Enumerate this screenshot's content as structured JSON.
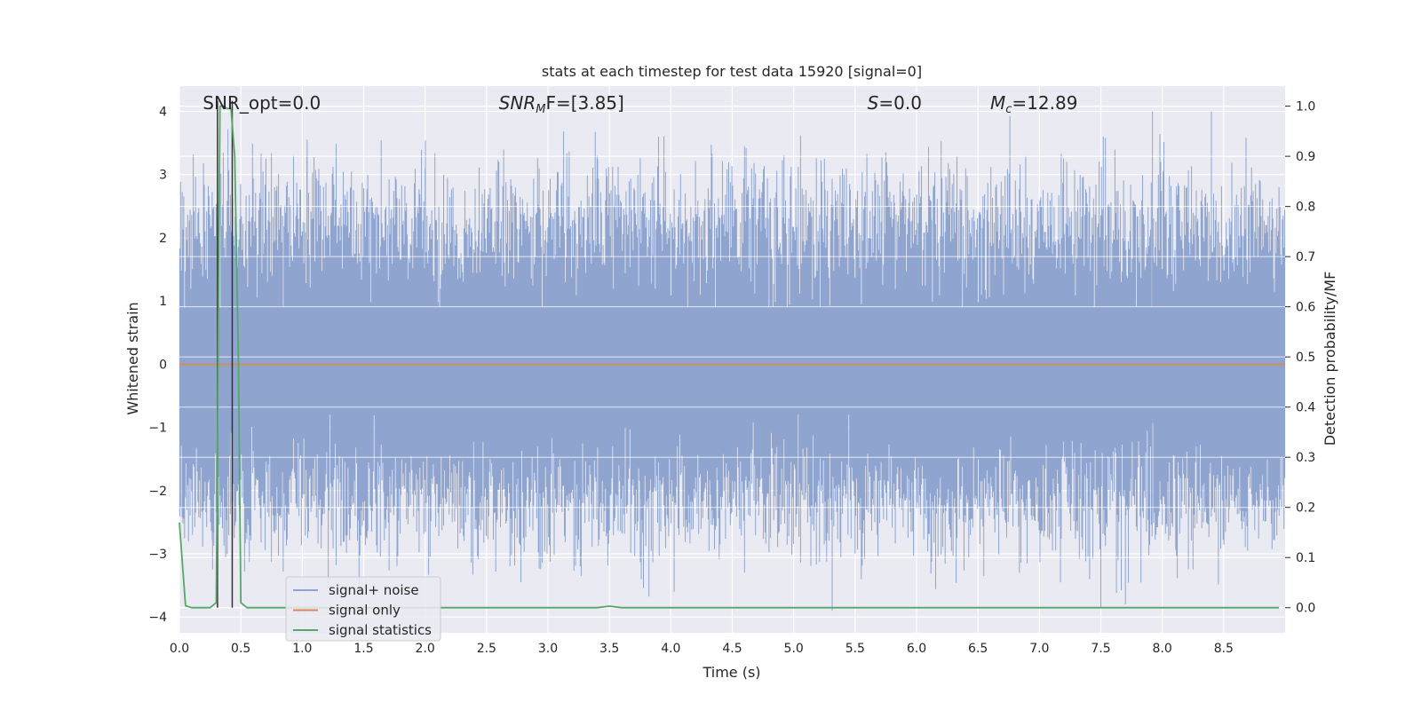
{
  "chart_data": {
    "type": "line",
    "title": "stats at each timestep for test data 15920 [signal=0]",
    "xlabel": "Time (s)",
    "ylabel": "Whitened strain",
    "y2label": "Detection probability/MF",
    "xlim": [
      0.0,
      9.0
    ],
    "ylim": [
      -4.25,
      4.4
    ],
    "y2lim": [
      -0.05,
      1.04
    ],
    "x_ticks": [
      "0.0",
      "0.5",
      "1.0",
      "1.5",
      "2.0",
      "2.5",
      "3.0",
      "3.5",
      "4.0",
      "4.5",
      "5.0",
      "5.5",
      "6.0",
      "6.5",
      "7.0",
      "7.5",
      "8.0",
      "8.5"
    ],
    "y_ticks": [
      "4",
      "3",
      "2",
      "1",
      "0",
      "−1",
      "−2",
      "−3",
      "−4"
    ],
    "y2_ticks": [
      "1.0",
      "0.9",
      "0.8",
      "0.7",
      "0.6",
      "0.5",
      "0.4",
      "0.3",
      "0.2",
      "0.1",
      "0.0"
    ],
    "grid": true,
    "legend_position": "lower-left",
    "colors": {
      "noise": "#8fa5cf",
      "signal": "#dd8452",
      "stats": "#55a868",
      "background": "#eaeaf2",
      "vline": "#333333"
    },
    "annotations": {
      "snr_opt": "SNR_opt=0.0",
      "snr_mf_base": "SNR",
      "snr_mf_sub": "M",
      "snr_mf_rest": "F=[3.85]",
      "s_base": "S",
      "s_rest": "=0.0",
      "mc_base": "M",
      "mc_sub": "c",
      "mc_rest": "=12.89"
    },
    "annotation_x": [
      0.19,
      2.6,
      5.6,
      6.6
    ],
    "vertical_lines_x": [
      0.31,
      0.43
    ],
    "series": [
      {
        "name": "signal+ noise",
        "axis": "left",
        "spread_mean": 2.2,
        "peaks": [
          {
            "x": 0.68,
            "y": 3.05
          },
          {
            "x": 1.04,
            "y": 3.55
          },
          {
            "x": 1.4,
            "y": 3.05
          },
          {
            "x": 2.0,
            "y": 3.1
          },
          {
            "x": 2.6,
            "y": 3.2
          },
          {
            "x": 3.4,
            "y": 3.3
          },
          {
            "x": 3.9,
            "y": 3.6
          },
          {
            "x": 4.6,
            "y": 3.45
          },
          {
            "x": 5.25,
            "y": 3.25
          },
          {
            "x": 5.75,
            "y": 3.35
          },
          {
            "x": 6.4,
            "y": 3.1
          },
          {
            "x": 7.52,
            "y": 3.6
          },
          {
            "x": 7.92,
            "y": 4.0
          },
          {
            "x": 8.4,
            "y": 4.0
          },
          {
            "x": 8.95,
            "y": 2.8
          }
        ],
        "troughs": [
          {
            "x": 0.27,
            "y": -3.25
          },
          {
            "x": 2.78,
            "y": -3.45
          },
          {
            "x": 3.27,
            "y": -3.35
          },
          {
            "x": 3.76,
            "y": -3.4
          },
          {
            "x": 4.6,
            "y": -3.3
          },
          {
            "x": 5.55,
            "y": -3.4
          },
          {
            "x": 6.9,
            "y": -3.15
          },
          {
            "x": 7.5,
            "y": -3.85
          },
          {
            "x": 7.7,
            "y": -3.8
          },
          {
            "x": 8.25,
            "y": -3.25
          }
        ]
      },
      {
        "name": "signal only",
        "axis": "left",
        "x": [
          0.0,
          9.0
        ],
        "y": [
          0.0,
          0.0
        ]
      },
      {
        "name": "signal statistics",
        "axis": "right",
        "x": [
          0.0,
          0.05,
          0.1,
          0.15,
          0.2,
          0.25,
          0.3,
          0.33,
          0.36,
          0.39,
          0.42,
          0.45,
          0.48,
          0.5,
          0.55,
          0.6,
          1.0,
          2.0,
          3.0,
          3.4,
          3.5,
          3.6,
          4.0,
          5.0,
          6.0,
          7.0,
          8.0,
          8.95
        ],
        "y": [
          0.17,
          0.004,
          0.0,
          0.0,
          0.0,
          0.0,
          0.01,
          1.0,
          1.0,
          0.995,
          0.995,
          0.9,
          0.5,
          0.01,
          0.0,
          0.0,
          0.0,
          0.0,
          0.0,
          0.0,
          0.003,
          0.0,
          0.0,
          0.0,
          0.0,
          0.0,
          0.0,
          0.0
        ]
      }
    ]
  }
}
